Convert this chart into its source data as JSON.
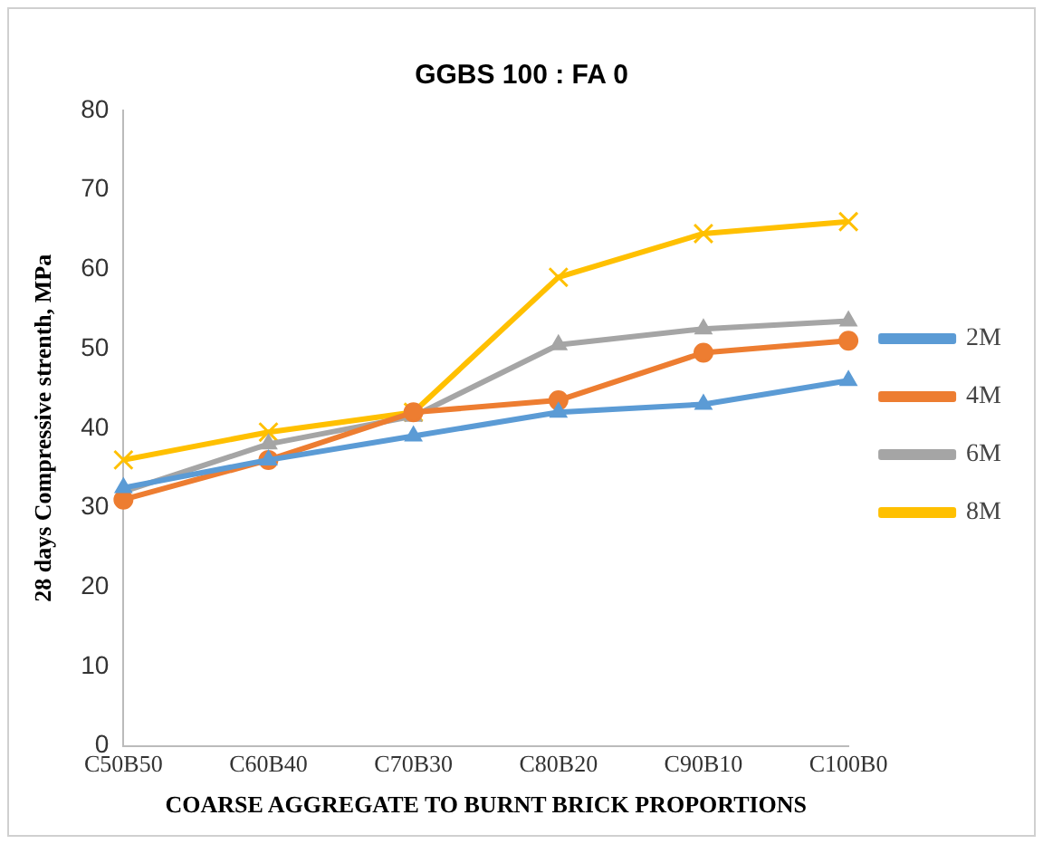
{
  "chart_data": {
    "type": "line",
    "title": "GGBS 100 : FA 0",
    "xlabel": "COARSE AGGREGATE TO BURNT BRICK PROPORTIONS",
    "ylabel": "28 days Compressive strenth, MPa",
    "categories": [
      "C50B50",
      "C60B40",
      "C70B30",
      "C80B20",
      "C90B10",
      "C100B0"
    ],
    "series": [
      {
        "name": "2M",
        "color": "#5b9bd5",
        "marker": "triangle",
        "values": [
          32.5,
          36,
          39,
          42,
          43,
          46
        ]
      },
      {
        "name": "4M",
        "color": "#ed7d31",
        "marker": "circle",
        "values": [
          31,
          36,
          42,
          43.5,
          49.5,
          51
        ]
      },
      {
        "name": "6M",
        "color": "#a5a5a5",
        "marker": "triangle",
        "values": [
          32,
          38,
          41.5,
          50.5,
          52.5,
          53.5
        ]
      },
      {
        "name": "8M",
        "color": "#ffc000",
        "marker": "cross",
        "values": [
          36,
          39.5,
          42,
          59,
          64.5,
          66
        ]
      }
    ],
    "ylim": [
      0,
      80
    ],
    "yticks": [
      0,
      10,
      20,
      30,
      40,
      50,
      60,
      70,
      80
    ],
    "grid": false,
    "legend": "right"
  }
}
